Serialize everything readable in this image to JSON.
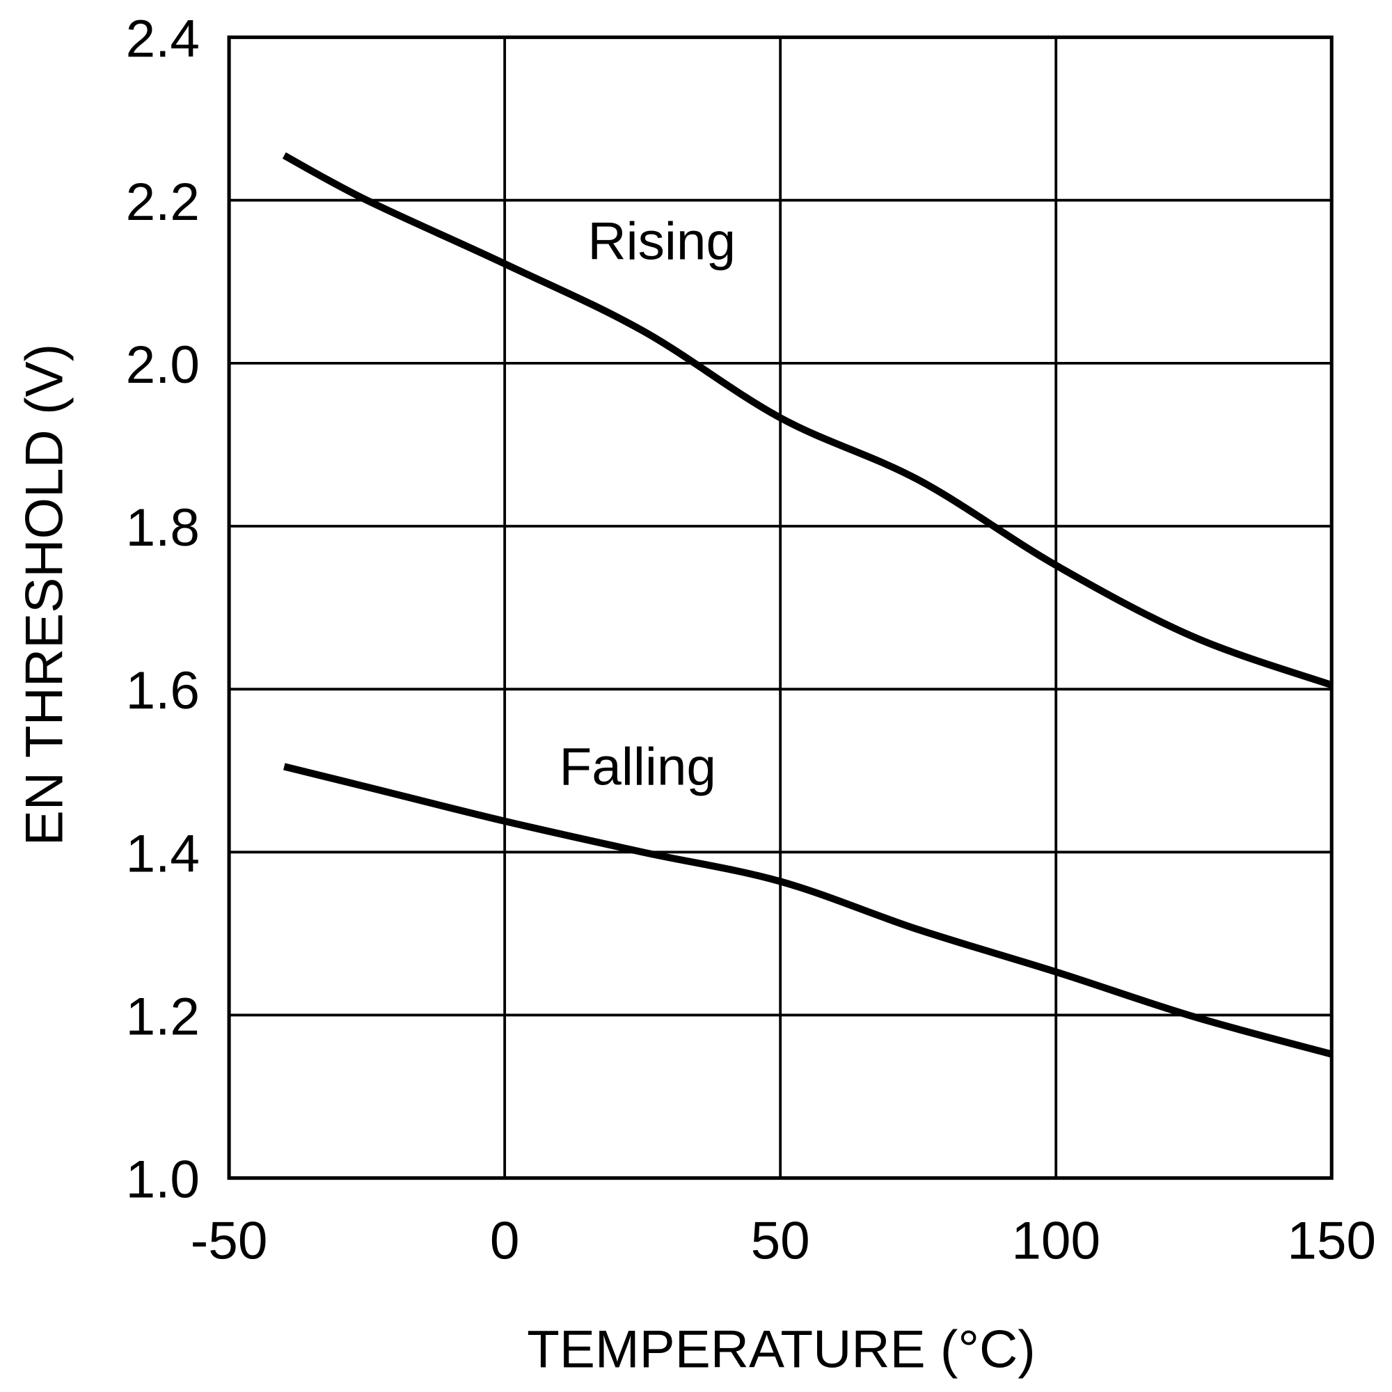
{
  "chart_data": {
    "type": "line",
    "title": "",
    "xlabel": "TEMPERATURE (°C)",
    "ylabel": "EN THRESHOLD (V)",
    "xlim": [
      -50,
      150
    ],
    "ylim": [
      1.0,
      2.4
    ],
    "xticks": [
      "-50",
      "0",
      "50",
      "100",
      "150"
    ],
    "yticks": [
      "1.0",
      "1.2",
      "1.4",
      "1.6",
      "1.8",
      "2.0",
      "2.2",
      "2.4"
    ],
    "grid": true,
    "line_color": "#000000",
    "series": [
      {
        "name": "Rising",
        "x": [
          -40,
          -25,
          0,
          25,
          50,
          75,
          100,
          125,
          150
        ],
        "y": [
          2.255,
          2.2,
          2.122,
          2.04,
          1.933,
          1.857,
          1.752,
          1.664,
          1.605
        ]
      },
      {
        "name": "Falling",
        "x": [
          -40,
          -25,
          0,
          25,
          50,
          75,
          100,
          125,
          150
        ],
        "y": [
          1.505,
          1.48,
          1.438,
          1.4,
          1.364,
          1.305,
          1.253,
          1.198,
          1.152
        ]
      }
    ]
  }
}
